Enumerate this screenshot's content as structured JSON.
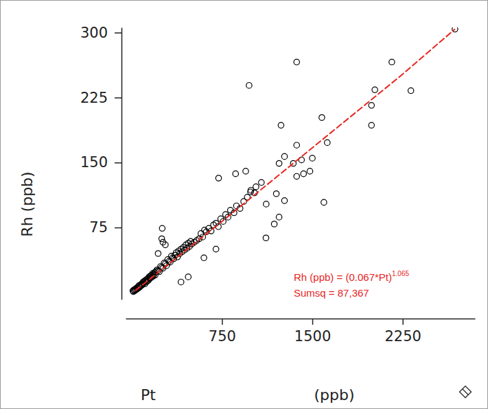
{
  "chart_data": {
    "type": "scatter",
    "xlabel": [
      "Pt",
      "(ppb)"
    ],
    "ylabel": "Rh (ppb)",
    "annotations": [
      {
        "text": "Rh (ppb) = (0.067*Pt)",
        "superscript": "1.065",
        "color": "#e8251f"
      },
      {
        "text": "Sumsq = 87,367",
        "color": "#e8251f"
      }
    ],
    "xlim": [
      -50,
      2850
    ],
    "ylim": [
      -8,
      306
    ],
    "xticks": [
      750,
      1500,
      2250
    ],
    "yticks": [
      75,
      150,
      225,
      300
    ],
    "grid": false,
    "series": [
      {
        "type": "scatter",
        "marker": "circle",
        "color": "#000000",
        "x": [
          10,
          15,
          20,
          25,
          30,
          35,
          40,
          45,
          50,
          55,
          60,
          65,
          70,
          75,
          80,
          85,
          90,
          95,
          100,
          105,
          110,
          115,
          120,
          125,
          130,
          135,
          140,
          145,
          150,
          155,
          160,
          165,
          170,
          175,
          180,
          185,
          190,
          195,
          200,
          210,
          220,
          230,
          240,
          250,
          260,
          270,
          280,
          290,
          300,
          310,
          320,
          330,
          340,
          350,
          360,
          370,
          380,
          390,
          400,
          410,
          420,
          430,
          440,
          450,
          460,
          470,
          480,
          490,
          500,
          520,
          540,
          560,
          575,
          590,
          605,
          620,
          640,
          660,
          680,
          700,
          720,
          740,
          760,
          780,
          800,
          820,
          850,
          870,
          900,
          930,
          960,
          990,
          1020,
          250,
          260,
          280,
          220,
          254,
          410,
          470,
          600,
          700,
          722,
          947,
          863,
          1032,
          1077,
          1117,
          1201,
          987,
          975,
          1370,
          2160,
          1240,
          2318,
          2019,
          1991,
          1991,
          1579,
          1624,
          1596,
          1370,
          1342,
          1410,
          1427,
          1370,
          1269,
          1224,
          1269,
          1224,
          1115,
          1184,
          2684,
          1500,
          1480
        ],
        "values": [
          2,
          1,
          3,
          2,
          4,
          3,
          5,
          4,
          6,
          5,
          8,
          6,
          7,
          9,
          8,
          10,
          9,
          12,
          11,
          13,
          10,
          14,
          12,
          15,
          13,
          16,
          14,
          18,
          16,
          19,
          17,
          20,
          18,
          22,
          19,
          21,
          23,
          20,
          24,
          26,
          25,
          24,
          30,
          29,
          28,
          34,
          33,
          31,
          38,
          36,
          35,
          42,
          40,
          39,
          43,
          46,
          41,
          48,
          45,
          50,
          47,
          52,
          49,
          55,
          51,
          57,
          53,
          59,
          56,
          58,
          60,
          62,
          68,
          64,
          72,
          70,
          74,
          71,
          78,
          80,
          76,
          85,
          82,
          90,
          87,
          95,
          92,
          100,
          97,
          105,
          110,
          118,
          115,
          62,
          58,
          55,
          45,
          74,
          12,
          18,
          40,
          50,
          132,
          140,
          137,
          122,
          127,
          102,
          114,
          116,
          239,
          266,
          266,
          193,
          233,
          234,
          216,
          193,
          202,
          173,
          104,
          170,
          149,
          153,
          137,
          134,
          157,
          149,
          106,
          87,
          63,
          79,
          304,
          155,
          140
        ]
      },
      {
        "type": "line",
        "line_style": "dashed",
        "color": "#e8251f",
        "x": [
          30,
          750,
          1500,
          2250,
          2684
        ],
        "values": [
          2,
          82,
          167,
          252,
          304
        ]
      }
    ]
  }
}
